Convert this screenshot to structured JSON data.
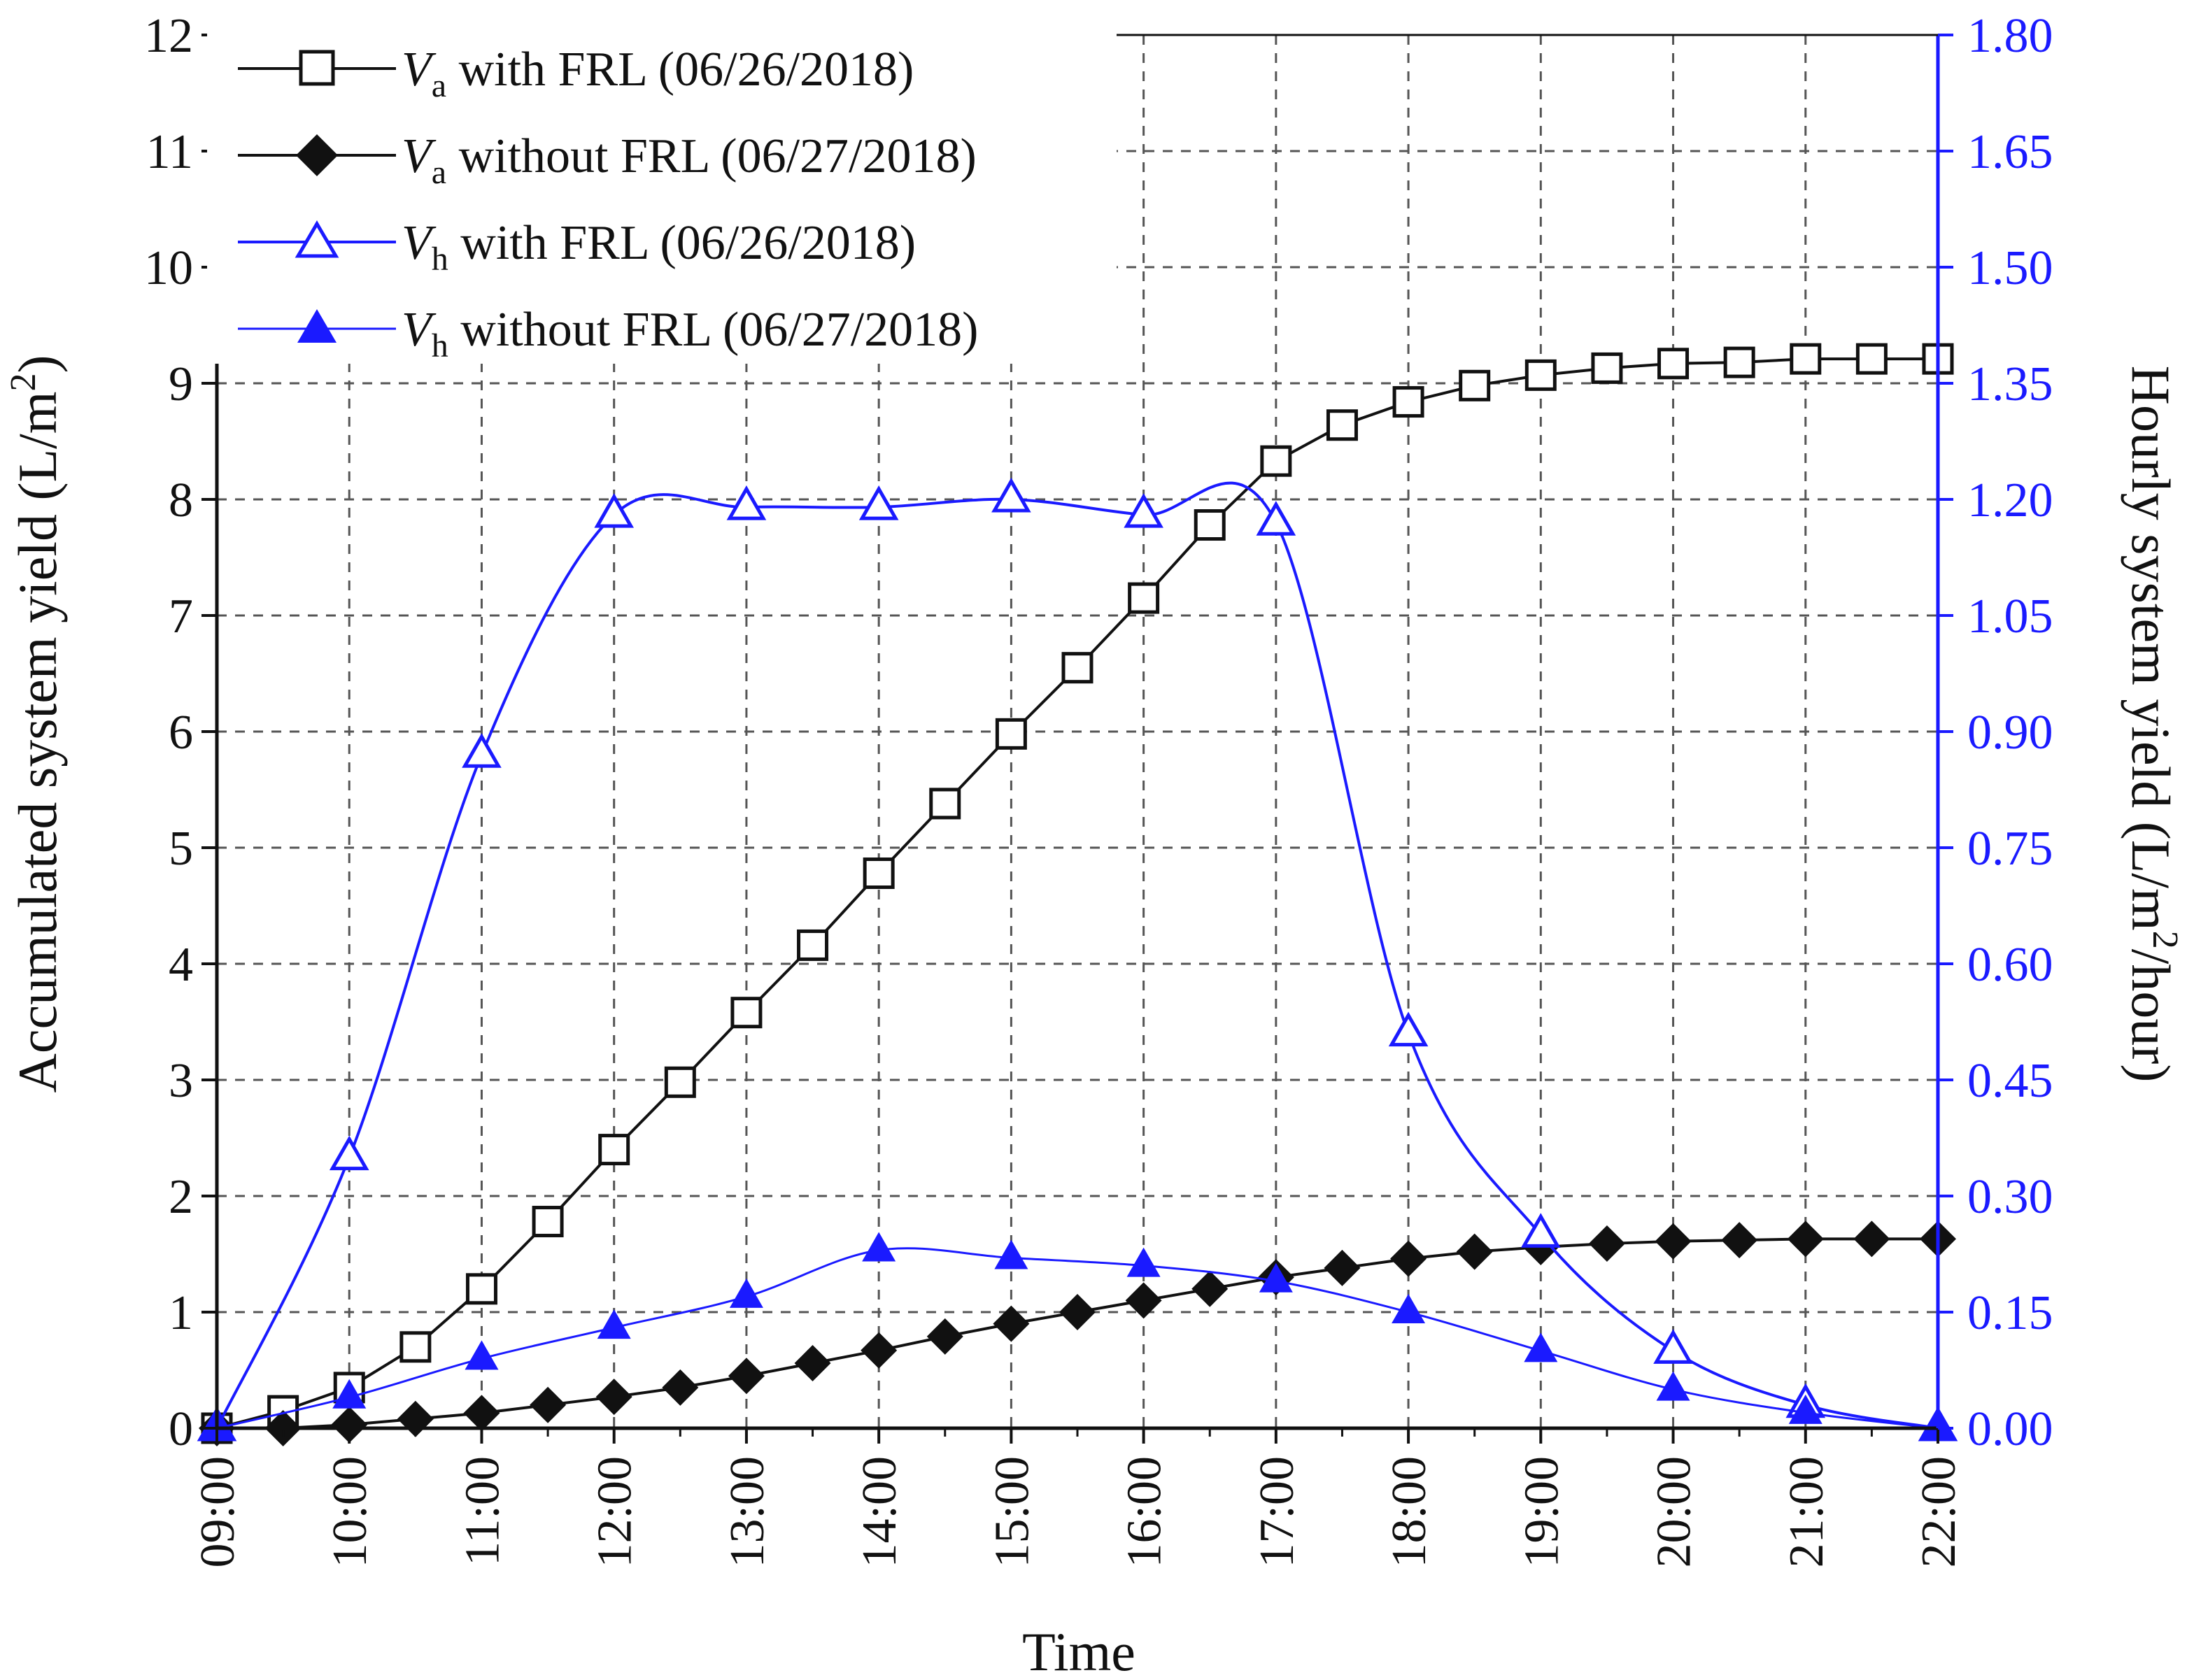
{
  "chart_data": {
    "type": "line",
    "title": "",
    "xlabel": "Time",
    "ylabel_left": "Accumulated system yield (L/m²)",
    "ylabel_right": "Hourly system yield (L/m²/hour)",
    "ylabel_left_parts": {
      "main": "Accumulated system yield (L/m",
      "sup": "2",
      "end": ")"
    },
    "ylabel_right_parts": {
      "main": "Hourly system yield (L/m",
      "sup": "2",
      "end": "/hour)"
    },
    "x_tick_labels": [
      "09:00",
      "10:00",
      "11:00",
      "12:00",
      "13:00",
      "14:00",
      "15:00",
      "16:00",
      "17:00",
      "18:00",
      "19:00",
      "20:00",
      "21:00",
      "22:00"
    ],
    "x_range": [
      9,
      22
    ],
    "y_left": {
      "range": [
        0,
        12
      ],
      "ticks": [
        "0",
        "1",
        "2",
        "3",
        "4",
        "5",
        "6",
        "7",
        "8",
        "9",
        "10",
        "11",
        "12"
      ]
    },
    "y_right": {
      "range": [
        0,
        1.8
      ],
      "ticks": [
        "0.00",
        "0.15",
        "0.30",
        "0.45",
        "0.60",
        "0.75",
        "0.90",
        "1.05",
        "1.20",
        "1.35",
        "1.50",
        "1.65",
        "1.80"
      ]
    },
    "grid": true,
    "legend_position": "top-left",
    "series": [
      {
        "name": "V_a with FRL (06/26/2018)",
        "label_var": "V",
        "label_sub": "a",
        "label_rest": " with FRL (06/26/2018)",
        "axis": "left",
        "marker": "open-square",
        "color": "#111111",
        "smooth": false,
        "x": [
          9,
          9.5,
          10,
          10.5,
          11,
          11.5,
          12,
          12.5,
          13,
          13.5,
          14,
          14.5,
          15,
          15.5,
          16,
          16.5,
          17,
          17.5,
          18,
          18.5,
          19,
          19.5,
          20,
          20.5,
          21,
          21.5,
          22
        ],
        "values": [
          0.0,
          0.15,
          0.35,
          0.7,
          1.2,
          1.78,
          2.4,
          2.98,
          3.58,
          4.16,
          4.78,
          5.38,
          5.98,
          6.55,
          7.15,
          7.78,
          8.33,
          8.64,
          8.84,
          8.98,
          9.07,
          9.13,
          9.17,
          9.18,
          9.21,
          9.21,
          9.21
        ]
      },
      {
        "name": "V_a without FRL (06/27/2018)",
        "label_var": "V",
        "label_sub": "a",
        "label_rest": " without FRL (06/27/2018)",
        "axis": "left",
        "marker": "filled-diamond",
        "color": "#111111",
        "smooth": false,
        "x": [
          9,
          9.5,
          10,
          10.5,
          11,
          11.5,
          12,
          12.5,
          13,
          13.5,
          14,
          14.5,
          15,
          15.5,
          16,
          16.5,
          17,
          17.5,
          18,
          18.5,
          19,
          19.5,
          20,
          20.5,
          21,
          21.5,
          22
        ],
        "values": [
          0.0,
          0.0,
          0.03,
          0.08,
          0.13,
          0.2,
          0.27,
          0.35,
          0.45,
          0.56,
          0.67,
          0.79,
          0.9,
          1.0,
          1.1,
          1.2,
          1.3,
          1.38,
          1.46,
          1.52,
          1.56,
          1.59,
          1.61,
          1.62,
          1.63,
          1.63,
          1.63
        ]
      },
      {
        "name": "V_h with FRL (06/26/2018)",
        "label_var": "V",
        "label_sub": "h",
        "label_rest": " with FRL (06/26/2018)",
        "axis": "right",
        "marker": "open-triangle",
        "color": "#1a1aff",
        "smooth": true,
        "x": [
          9,
          10,
          11,
          12,
          13,
          14,
          15,
          16,
          17,
          18,
          19,
          20,
          21,
          22
        ],
        "values": [
          0.0,
          0.35,
          0.87,
          1.18,
          1.19,
          1.19,
          1.2,
          1.18,
          1.17,
          0.51,
          0.25,
          0.1,
          0.03,
          0.0
        ]
      },
      {
        "name": "V_h without FRL (06/27/2018)",
        "label_var": "V",
        "label_sub": "h",
        "label_rest": " without FRL (06/27/2018)",
        "axis": "right",
        "marker": "filled-triangle",
        "color": "#1a1aff",
        "smooth": true,
        "x": [
          9,
          10,
          11,
          12,
          13,
          14,
          15,
          16,
          17,
          18,
          19,
          20,
          21,
          22
        ],
        "values": [
          0.0,
          0.04,
          0.09,
          0.13,
          0.17,
          0.23,
          0.22,
          0.21,
          0.19,
          0.15,
          0.1,
          0.05,
          0.02,
          0.0
        ]
      }
    ]
  },
  "colors": {
    "axis_left": "#111111",
    "axis_right": "#1a1aff",
    "series_black": "#111111",
    "series_blue": "#1a1aff"
  }
}
